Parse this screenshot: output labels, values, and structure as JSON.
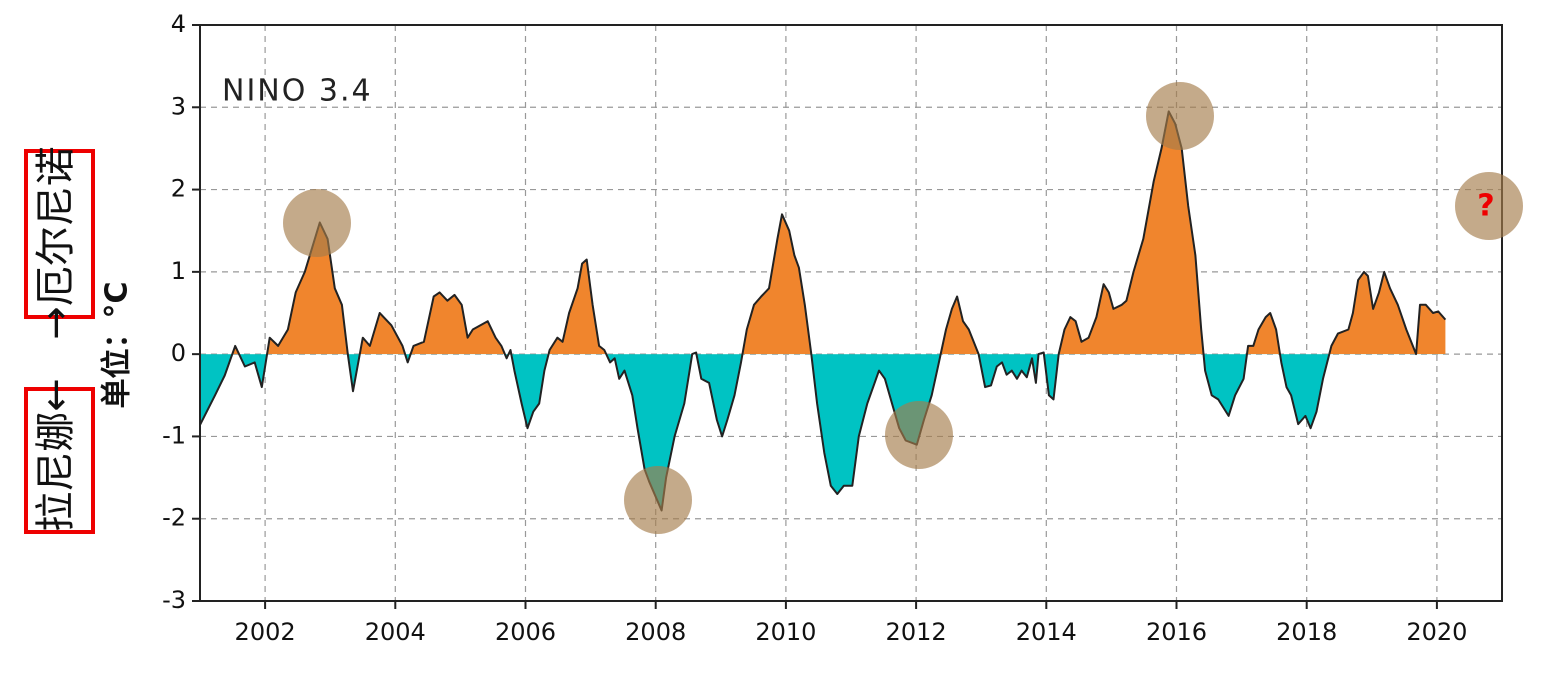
{
  "annotations": {
    "el_nino": "→厄尔尼诺",
    "la_nina": "拉尼娜←",
    "unit": "单位：°C",
    "question": "?"
  },
  "chart_data": {
    "type": "area",
    "title": "NINO 3.4",
    "xlim": [
      2001,
      2021
    ],
    "xticks": [
      2002,
      2004,
      2006,
      2008,
      2010,
      2012,
      2014,
      2016,
      2018,
      2020
    ],
    "ylim": [
      -3,
      4
    ],
    "yticks": [
      -3,
      -2,
      -1,
      0,
      1,
      2,
      3,
      4
    ],
    "grid": true,
    "positive_color": "#f0852d",
    "negative_color": "#00c3c3",
    "line_color": "#222222",
    "x": [
      2001.0,
      2001.23,
      2001.38,
      2001.54,
      2001.69,
      2001.84,
      2001.95,
      2002.07,
      2002.2,
      2002.35,
      2002.47,
      2002.61,
      2002.84,
      2002.96,
      2003.07,
      2003.18,
      2003.27,
      2003.35,
      2003.5,
      2003.61,
      2003.76,
      2003.94,
      2004.11,
      2004.19,
      2004.28,
      2004.44,
      2004.59,
      2004.68,
      2004.8,
      2004.91,
      2005.02,
      2005.11,
      2005.19,
      2005.42,
      2005.54,
      2005.63,
      2005.71,
      2005.77,
      2005.83,
      2005.94,
      2006.03,
      2006.12,
      2006.21,
      2006.29,
      2006.37,
      2006.49,
      2006.57,
      2006.67,
      2006.8,
      2006.87,
      2006.94,
      2007.03,
      2007.13,
      2007.21,
      2007.3,
      2007.37,
      2007.44,
      2007.52,
      2007.64,
      2007.72,
      2007.83,
      2007.9,
      2008.09,
      2008.16,
      2008.29,
      2008.44,
      2008.52,
      2008.56,
      2008.62,
      2008.7,
      2008.82,
      2008.94,
      2009.02,
      2009.1,
      2009.21,
      2009.31,
      2009.4,
      2009.51,
      2009.62,
      2009.74,
      2009.87,
      2009.94,
      2010.05,
      2010.13,
      2010.2,
      2010.29,
      2010.39,
      2010.48,
      2010.59,
      2010.69,
      2010.79,
      2010.89,
      2011.02,
      2011.12,
      2011.25,
      2011.43,
      2011.52,
      2011.63,
      2011.74,
      2011.84,
      2012.01,
      2012.12,
      2012.24,
      2012.35,
      2012.46,
      2012.55,
      2012.63,
      2012.72,
      2012.81,
      2012.96,
      2013.06,
      2013.15,
      2013.24,
      2013.32,
      2013.39,
      2013.47,
      2013.55,
      2013.62,
      2013.7,
      2013.78,
      2013.84,
      2013.88,
      2013.96,
      2014.04,
      2014.11,
      2014.19,
      2014.28,
      2014.37,
      2014.45,
      2014.54,
      2014.65,
      2014.77,
      2014.88,
      2014.96,
      2015.03,
      2015.16,
      2015.23,
      2015.34,
      2015.49,
      2015.65,
      2015.77,
      2015.88,
      2015.98,
      2016.08,
      2016.18,
      2016.29,
      2016.38,
      2016.44,
      2016.54,
      2016.64,
      2016.8,
      2016.9,
      2017.03,
      2017.1,
      2017.18,
      2017.26,
      2017.37,
      2017.44,
      2017.53,
      2017.61,
      2017.69,
      2017.76,
      2017.87,
      2017.98,
      2018.06,
      2018.15,
      2018.25,
      2018.38,
      2018.48,
      2018.64,
      2018.71,
      2018.79,
      2018.88,
      2018.94,
      2019.02,
      2019.11,
      2019.19,
      2019.28,
      2019.4,
      2019.53,
      2019.68,
      2019.74,
      2019.83,
      2019.94,
      2020.02,
      2020.13
    ],
    "values": [
      -0.86,
      -0.5,
      -0.26,
      0.1,
      -0.15,
      -0.1,
      -0.4,
      0.2,
      0.1,
      0.3,
      0.75,
      1.0,
      1.6,
      1.4,
      0.8,
      0.6,
      0,
      -0.45,
      0.2,
      0.1,
      0.5,
      0.35,
      0.1,
      -0.1,
      0.1,
      0.15,
      0.7,
      0.75,
      0.65,
      0.72,
      0.6,
      0.2,
      0.3,
      0.4,
      0.2,
      0.1,
      -0.05,
      0.05,
      -0.2,
      -0.6,
      -0.9,
      -0.7,
      -0.6,
      -0.2,
      0.05,
      0.2,
      0.15,
      0.5,
      0.8,
      1.1,
      1.15,
      0.6,
      0.1,
      0.05,
      -0.1,
      -0.05,
      -0.3,
      -0.2,
      -0.5,
      -0.9,
      -1.4,
      -1.55,
      -1.9,
      -1.5,
      -1.0,
      -0.6,
      -0.2,
      0,
      0.02,
      -0.3,
      -0.35,
      -0.8,
      -1.0,
      -0.8,
      -0.5,
      -0.1,
      0.3,
      0.6,
      0.7,
      0.8,
      1.4,
      1.7,
      1.5,
      1.2,
      1.05,
      0.6,
      0,
      -0.6,
      -1.2,
      -1.6,
      -1.7,
      -1.6,
      -1.6,
      -1.0,
      -0.6,
      -0.2,
      -0.3,
      -0.6,
      -0.9,
      -1.05,
      -1.1,
      -0.8,
      -0.5,
      -0.1,
      0.3,
      0.55,
      0.7,
      0.4,
      0.3,
      0.0,
      -0.4,
      -0.38,
      -0.15,
      -0.1,
      -0.25,
      -0.2,
      -0.3,
      -0.2,
      -0.28,
      -0.05,
      -0.35,
      0,
      0.02,
      -0.5,
      -0.55,
      0,
      0.3,
      0.45,
      0.4,
      0.15,
      0.2,
      0.45,
      0.85,
      0.75,
      0.55,
      0.6,
      0.65,
      1.0,
      1.4,
      2.1,
      2.5,
      2.95,
      2.8,
      2.5,
      1.8,
      1.2,
      0.3,
      -0.2,
      -0.5,
      -0.55,
      -0.75,
      -0.5,
      -0.3,
      0.1,
      0.1,
      0.3,
      0.45,
      0.5,
      0.3,
      -0.1,
      -0.4,
      -0.5,
      -0.85,
      -0.75,
      -0.9,
      -0.7,
      -0.3,
      0.1,
      0.25,
      0.3,
      0.5,
      0.9,
      1.0,
      0.95,
      0.55,
      0.75,
      1.0,
      0.8,
      0.6,
      0.3,
      0.0,
      0.6,
      0.6,
      0.5,
      0.52,
      0.42
    ]
  }
}
